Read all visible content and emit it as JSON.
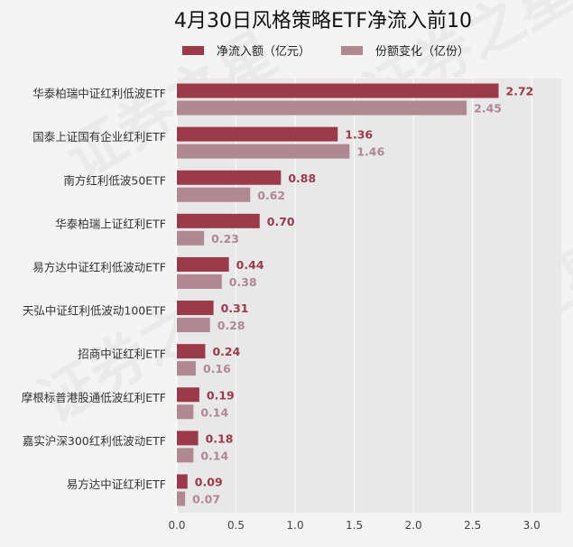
{
  "chart_data": {
    "type": "bar",
    "orientation": "horizontal",
    "title": "4月30日风格策略ETF净流入前10",
    "categories": [
      "华泰柏瑞中证红利低波ETF",
      "国泰上证国有企业红利ETF",
      "南方红利低波50ETF",
      "华泰柏瑞上证红利ETF",
      "易方达中证红利低波动ETF",
      "天弘中证红利低波动100ETF",
      "招商中证红利ETF",
      "摩根标普港股通低波红利ETF",
      "嘉实沪深300红利低波动ETF",
      "易方达中证红利ETF"
    ],
    "series": [
      {
        "name": "净流入额（亿元）",
        "color": "#9b3a4a",
        "values": [
          2.72,
          1.36,
          0.88,
          0.7,
          0.44,
          0.31,
          0.24,
          0.19,
          0.18,
          0.09
        ],
        "labels": [
          "2.72",
          "1.36",
          "0.88",
          "0.70",
          "0.44",
          "0.31",
          "0.24",
          "0.19",
          "0.18",
          "0.09"
        ]
      },
      {
        "name": "份额变化（亿份）",
        "color": "#b08891",
        "values": [
          2.45,
          1.46,
          0.62,
          0.23,
          0.38,
          0.28,
          0.16,
          0.14,
          0.14,
          0.07
        ],
        "labels": [
          "2.45",
          "1.46",
          "0.62",
          "0.23",
          "0.38",
          "0.28",
          "0.16",
          "0.14",
          "0.14",
          "0.07"
        ]
      }
    ],
    "xlim": [
      0,
      3.25
    ],
    "xticks": [
      0,
      0.5,
      1,
      1.5,
      2,
      2.5,
      3
    ],
    "xtick_labels": [
      "0.0",
      "0.5",
      "1.0",
      "1.5",
      "2.0",
      "2.5",
      "3.0"
    ],
    "grid": true,
    "legend_position": "top",
    "plot_background": "#e8e8e8",
    "watermark": "证券之星"
  }
}
